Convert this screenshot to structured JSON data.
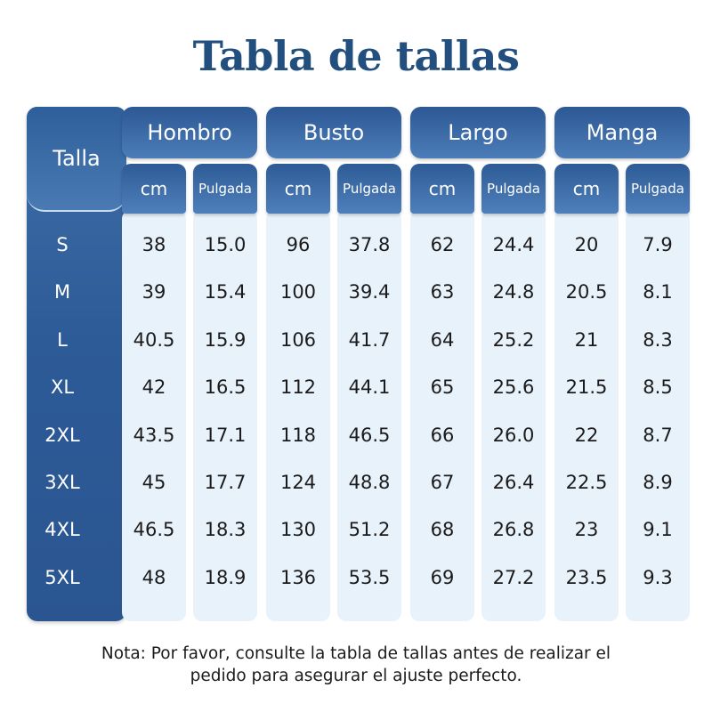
{
  "title": "Tabla de tallas",
  "table": {
    "size_header": "Talla",
    "groups": [
      {
        "label": "Hombro",
        "units": [
          "cm",
          "Pulgada"
        ]
      },
      {
        "label": "Busto",
        "units": [
          "cm",
          "Pulgada"
        ]
      },
      {
        "label": "Largo",
        "units": [
          "cm",
          "Pulgada"
        ]
      },
      {
        "label": "Manga",
        "units": [
          "cm",
          "Pulgada"
        ]
      }
    ],
    "rows": [
      {
        "size": "S",
        "values": [
          "38",
          "15.0",
          "96",
          "37.8",
          "62",
          "24.4",
          "20",
          "7.9"
        ]
      },
      {
        "size": "M",
        "values": [
          "39",
          "15.4",
          "100",
          "39.4",
          "63",
          "24.8",
          "20.5",
          "8.1"
        ]
      },
      {
        "size": "L",
        "values": [
          "40.5",
          "15.9",
          "106",
          "41.7",
          "64",
          "25.2",
          "21",
          "8.3"
        ]
      },
      {
        "size": "XL",
        "values": [
          "42",
          "16.5",
          "112",
          "44.1",
          "65",
          "25.6",
          "21.5",
          "8.5"
        ]
      },
      {
        "size": "2XL",
        "values": [
          "43.5",
          "17.1",
          "118",
          "46.5",
          "66",
          "26.0",
          "22",
          "8.7"
        ]
      },
      {
        "size": "3XL",
        "values": [
          "45",
          "17.7",
          "124",
          "48.8",
          "67",
          "26.4",
          "22.5",
          "8.9"
        ]
      },
      {
        "size": "4XL",
        "values": [
          "46.5",
          "18.3",
          "130",
          "51.2",
          "68",
          "26.8",
          "23",
          "9.1"
        ]
      },
      {
        "size": "5XL",
        "values": [
          "48",
          "18.9",
          "136",
          "53.5",
          "69",
          "27.2",
          "23.5",
          "9.3"
        ]
      }
    ]
  },
  "note": [
    "Nota: Por favor, consulte la tabla de tallas antes de realizar el",
    "pedido para asegurar el ajuste perfecto."
  ]
}
